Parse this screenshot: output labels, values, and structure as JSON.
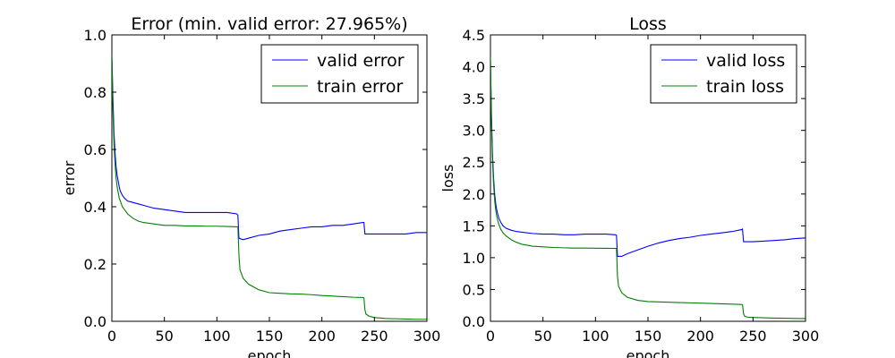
{
  "chart_data": [
    {
      "type": "line",
      "title": "Error (min. valid error: 27.965%)",
      "xlabel": "epoch",
      "ylabel": "error",
      "xlim": [
        0,
        300
      ],
      "ylim": [
        0.0,
        1.0
      ],
      "xticks": [
        "0",
        "50",
        "100",
        "150",
        "200",
        "250",
        "300"
      ],
      "yticks": [
        "0.0",
        "0.2",
        "0.4",
        "0.6",
        "0.8",
        "1.0"
      ],
      "grid": false,
      "legend_position": "top-right",
      "series": [
        {
          "name": "valid error",
          "color": "#0000ff",
          "x": [
            0,
            1,
            2,
            3,
            4,
            5,
            6,
            7,
            8,
            10,
            12,
            15,
            20,
            25,
            30,
            40,
            50,
            60,
            70,
            80,
            90,
            100,
            110,
            119,
            120,
            121,
            125,
            130,
            140,
            150,
            160,
            170,
            180,
            190,
            200,
            210,
            220,
            230,
            239,
            240,
            241,
            250,
            260,
            270,
            280,
            290,
            300
          ],
          "y": [
            0.93,
            0.78,
            0.66,
            0.59,
            0.54,
            0.51,
            0.49,
            0.47,
            0.455,
            0.44,
            0.43,
            0.42,
            0.415,
            0.41,
            0.405,
            0.395,
            0.39,
            0.385,
            0.38,
            0.38,
            0.38,
            0.38,
            0.38,
            0.375,
            0.37,
            0.29,
            0.285,
            0.29,
            0.3,
            0.305,
            0.315,
            0.32,
            0.325,
            0.33,
            0.33,
            0.335,
            0.335,
            0.34,
            0.345,
            0.345,
            0.305,
            0.305,
            0.305,
            0.305,
            0.305,
            0.31,
            0.31
          ]
        },
        {
          "name": "train error",
          "color": "#008000",
          "x": [
            0,
            1,
            2,
            3,
            4,
            5,
            6,
            7,
            8,
            10,
            12,
            15,
            20,
            25,
            30,
            40,
            50,
            60,
            70,
            80,
            90,
            100,
            110,
            119,
            120,
            121,
            122,
            125,
            130,
            140,
            150,
            160,
            170,
            180,
            190,
            200,
            210,
            220,
            230,
            239,
            240,
            241,
            242,
            245,
            250,
            260,
            270,
            280,
            290,
            300
          ],
          "y": [
            0.93,
            0.74,
            0.62,
            0.55,
            0.5,
            0.47,
            0.45,
            0.43,
            0.42,
            0.4,
            0.39,
            0.375,
            0.36,
            0.35,
            0.345,
            0.34,
            0.335,
            0.335,
            0.333,
            0.333,
            0.332,
            0.332,
            0.331,
            0.33,
            0.33,
            0.23,
            0.18,
            0.15,
            0.13,
            0.11,
            0.1,
            0.098,
            0.096,
            0.095,
            0.093,
            0.09,
            0.088,
            0.086,
            0.084,
            0.083,
            0.082,
            0.04,
            0.025,
            0.018,
            0.013,
            0.01,
            0.009,
            0.008,
            0.007,
            0.007
          ]
        }
      ]
    },
    {
      "type": "line",
      "title": "Loss",
      "xlabel": "epoch",
      "ylabel": "loss",
      "xlim": [
        0,
        300
      ],
      "ylim": [
        0.0,
        4.5
      ],
      "xticks": [
        "0",
        "50",
        "100",
        "150",
        "200",
        "250",
        "300"
      ],
      "yticks": [
        "0.0",
        "0.5",
        "1.0",
        "1.5",
        "2.0",
        "2.5",
        "3.0",
        "3.5",
        "4.0",
        "4.5"
      ],
      "grid": false,
      "legend_position": "top-right",
      "series": [
        {
          "name": "valid loss",
          "color": "#0000ff",
          "x": [
            0,
            1,
            2,
            3,
            4,
            5,
            6,
            7,
            8,
            10,
            12,
            15,
            20,
            25,
            30,
            40,
            50,
            60,
            70,
            80,
            90,
            100,
            110,
            119,
            120,
            121,
            125,
            130,
            140,
            150,
            160,
            170,
            180,
            190,
            200,
            210,
            220,
            230,
            239,
            240,
            241,
            250,
            260,
            270,
            280,
            290,
            300
          ],
          "y": [
            4.1,
            3.2,
            2.6,
            2.25,
            2.0,
            1.85,
            1.75,
            1.68,
            1.62,
            1.55,
            1.5,
            1.46,
            1.43,
            1.41,
            1.4,
            1.38,
            1.37,
            1.37,
            1.36,
            1.36,
            1.37,
            1.37,
            1.37,
            1.36,
            1.35,
            1.02,
            1.02,
            1.06,
            1.12,
            1.18,
            1.23,
            1.27,
            1.3,
            1.32,
            1.35,
            1.37,
            1.39,
            1.41,
            1.44,
            1.45,
            1.25,
            1.25,
            1.26,
            1.27,
            1.28,
            1.3,
            1.31
          ]
        },
        {
          "name": "train loss",
          "color": "#008000",
          "x": [
            0,
            1,
            2,
            3,
            4,
            5,
            6,
            7,
            8,
            10,
            12,
            15,
            20,
            25,
            30,
            40,
            50,
            60,
            70,
            80,
            90,
            100,
            110,
            119,
            120,
            121,
            122,
            125,
            130,
            140,
            150,
            160,
            170,
            180,
            190,
            200,
            210,
            220,
            230,
            239,
            240,
            241,
            242,
            245,
            250,
            260,
            270,
            280,
            290,
            300
          ],
          "y": [
            4.15,
            3.1,
            2.5,
            2.15,
            1.9,
            1.75,
            1.65,
            1.58,
            1.52,
            1.44,
            1.39,
            1.34,
            1.28,
            1.24,
            1.21,
            1.18,
            1.17,
            1.16,
            1.155,
            1.15,
            1.15,
            1.148,
            1.147,
            1.145,
            1.145,
            0.7,
            0.55,
            0.45,
            0.38,
            0.33,
            0.31,
            0.305,
            0.3,
            0.295,
            0.29,
            0.285,
            0.28,
            0.275,
            0.27,
            0.265,
            0.26,
            0.12,
            0.08,
            0.065,
            0.06,
            0.055,
            0.05,
            0.048,
            0.045,
            0.043
          ]
        }
      ]
    }
  ]
}
